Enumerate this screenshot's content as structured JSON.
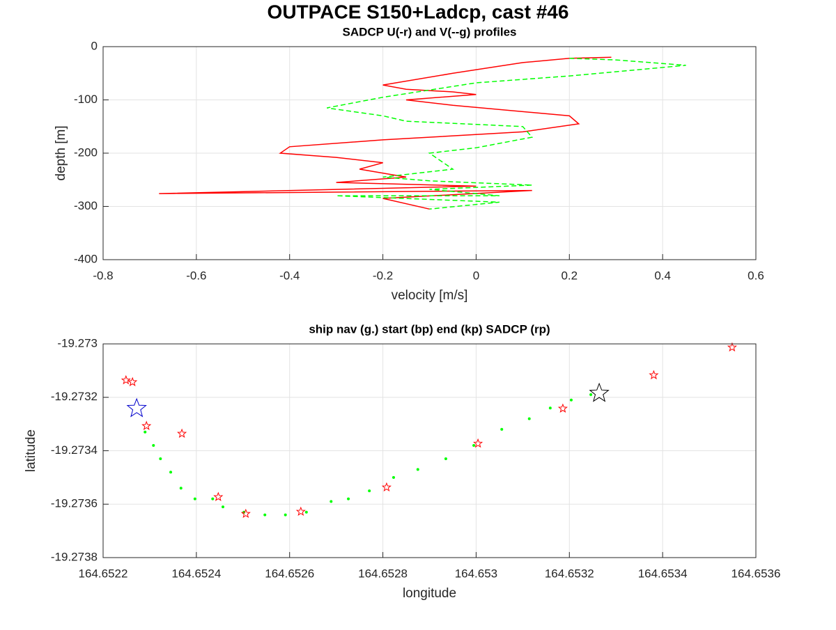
{
  "figure_title": "OUTPACE S150+Ladcp, cast #46",
  "chart_data": [
    {
      "type": "line",
      "title": "SADCP U(-r) and V(--g) profiles",
      "xlabel": "velocity [m/s]",
      "ylabel": "depth [m]",
      "xlim": [
        -0.8,
        0.6
      ],
      "ylim": [
        -400,
        0
      ],
      "xticks": [
        -0.8,
        -0.6,
        -0.4,
        -0.2,
        0,
        0.2,
        0.4,
        0.6
      ],
      "yticks": [
        -400,
        -300,
        -200,
        -100,
        0
      ],
      "grid": true,
      "series": [
        {
          "color": "#ff0000",
          "dash": "solid",
          "x": [
            0.29,
            0.2,
            0.1,
            -0.05,
            -0.2,
            -0.15,
            -0.05,
            0.0,
            -0.15,
            -0.05,
            0.2,
            0.22,
            0.1,
            -0.2,
            -0.4,
            -0.42,
            -0.3,
            -0.2,
            -0.25,
            -0.15,
            -0.3,
            0.0,
            -0.68,
            0.12,
            -0.2,
            -0.1
          ],
          "values": [
            -20,
            -22,
            -30,
            -50,
            -72,
            -80,
            -85,
            -90,
            -100,
            -110,
            -130,
            -145,
            -160,
            -175,
            -188,
            -200,
            -208,
            -218,
            -230,
            -245,
            -255,
            -262,
            -276,
            -270,
            -285,
            -305
          ]
        },
        {
          "color": "#00ff00",
          "dash": "dashed",
          "x": [
            0.2,
            0.3,
            0.45,
            0.2,
            0.0,
            -0.2,
            -0.32,
            -0.2,
            -0.15,
            0.1,
            0.12,
            0.0,
            -0.1,
            -0.05,
            -0.2,
            -0.1,
            0.12,
            -0.1,
            0.05,
            -0.3,
            0.05,
            -0.1
          ],
          "values": [
            -22,
            -25,
            -35,
            -55,
            -68,
            -95,
            -115,
            -130,
            -140,
            -150,
            -170,
            -190,
            -200,
            -230,
            -245,
            -252,
            -260,
            -268,
            -280,
            -280,
            -292,
            -305
          ]
        }
      ]
    },
    {
      "type": "scatter",
      "title": "ship nav (g.) start (bp) end (kp) SADCP (rp)",
      "xlabel": "longitude",
      "ylabel": "latitude",
      "xlim": [
        164.6522,
        164.6536
      ],
      "ylim": [
        -19.2738,
        -19.273
      ],
      "xticks": [
        164.6522,
        164.6524,
        164.6526,
        164.6528,
        164.653,
        164.6532,
        164.6534,
        164.6536
      ],
      "yticks": [
        -19.2738,
        -19.2736,
        -19.2734,
        -19.2732,
        -19.273
      ],
      "grid": true,
      "series": [
        {
          "color": "#00ff00",
          "marker": "dot",
          "x": [
            164.65229,
            164.652308,
            164.652323,
            164.652345,
            164.652367,
            164.652397,
            164.652435,
            164.652457,
            164.652502,
            164.652547,
            164.652591,
            164.652636,
            164.652689,
            164.652726,
            164.652771,
            164.652823,
            164.652875,
            164.652935,
            164.652995,
            164.653055,
            164.653114,
            164.653159,
            164.653204,
            164.653246
          ],
          "values": [
            -19.27333,
            -19.27338,
            -19.27343,
            -19.27348,
            -19.27354,
            -19.27358,
            -19.27358,
            -19.27361,
            -19.27363,
            -19.27364,
            -19.27364,
            -19.27363,
            -19.27359,
            -19.27358,
            -19.27355,
            -19.2735,
            -19.27347,
            -19.27343,
            -19.27338,
            -19.27332,
            -19.27328,
            -19.27324,
            -19.27321,
            -19.27319
          ]
        },
        {
          "color": "#ff0000",
          "marker": "star",
          "x": [
            164.652249,
            164.652263,
            164.652293,
            164.652369,
            164.652447,
            164.652506,
            164.652624,
            164.652808,
            164.653004,
            164.653186,
            164.653381,
            164.653549
          ],
          "values": [
            -19.273136,
            -19.273143,
            -19.273307,
            -19.273336,
            -19.273573,
            -19.273636,
            -19.273628,
            -19.273537,
            -19.273373,
            -19.273242,
            -19.273117,
            -19.273013
          ]
        },
        {
          "color": "#0000cc",
          "marker": "bigstar",
          "x": [
            164.652272
          ],
          "values": [
            -19.273242
          ]
        },
        {
          "color": "#000000",
          "marker": "bigstar",
          "x": [
            164.653264
          ],
          "values": [
            -19.273185
          ]
        }
      ]
    }
  ]
}
